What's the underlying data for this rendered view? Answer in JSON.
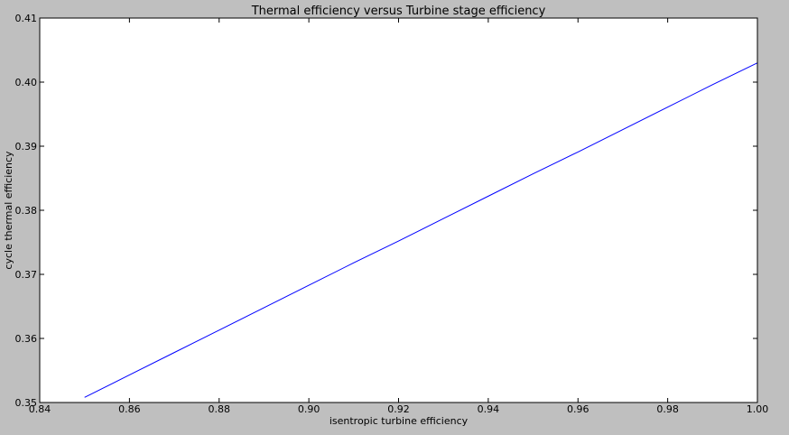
{
  "chart_data": {
    "type": "line",
    "title": "Thermal efficiency versus Turbine stage efficiency",
    "xlabel": "isentropic turbine efficiency",
    "ylabel": "cycle thermal efficiency",
    "xlim": [
      0.84,
      1.0
    ],
    "ylim": [
      0.35,
      0.41
    ],
    "xticks": [
      "0.84",
      "0.86",
      "0.88",
      "0.90",
      "0.92",
      "0.94",
      "0.96",
      "0.98",
      "1.00"
    ],
    "yticks": [
      "0.35",
      "0.36",
      "0.37",
      "0.38",
      "0.39",
      "0.40",
      "0.41"
    ],
    "grid": false,
    "legend": "none",
    "series": [
      {
        "color": "#0000ff",
        "x": [
          0.85,
          0.86,
          0.87,
          0.88,
          0.89,
          0.9,
          0.91,
          0.92,
          0.93,
          0.94,
          0.95,
          0.96,
          0.97,
          0.98,
          0.99,
          1.0
        ],
        "y": [
          0.3508,
          0.3543,
          0.3578,
          0.3613,
          0.3648,
          0.3683,
          0.3718,
          0.3752,
          0.3787,
          0.3822,
          0.3857,
          0.3891,
          0.3926,
          0.3961,
          0.3996,
          0.403
        ]
      }
    ]
  },
  "colors": {
    "figure_background": "#bfbfbf",
    "plot_background": "#ffffff",
    "axes": "#000000"
  }
}
